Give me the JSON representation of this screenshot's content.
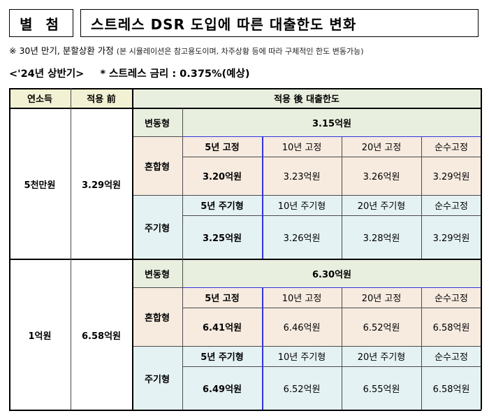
{
  "header": {
    "label": "별 첨",
    "title": "스트레스 DSR 도입에 따른 대출한도 변화"
  },
  "note": {
    "main": "※ 30년 만기, 분할상환 가정",
    "detail": "(본 시뮬레이션은 참고용도이며, 차주상황 등에 따라 구체적인 한도 변동가능)"
  },
  "subheading": {
    "period": "<'24년 상반기>",
    "rate": "* 스트레스 금리 : 0.375%(예상)"
  },
  "table": {
    "headers": {
      "income": "연소득",
      "before": "적용 前",
      "after": "적용 後 대출한도"
    },
    "groups": [
      {
        "income": "5천만원",
        "before": "3.29억원",
        "variable": {
          "label": "변동형",
          "value": "3.15억원"
        },
        "mixed": {
          "label": "혼합형",
          "cols": [
            "5년 고정",
            "10년 고정",
            "20년 고정",
            "순수고정"
          ],
          "values": [
            "3.20억원",
            "3.23억원",
            "3.26억원",
            "3.29억원"
          ]
        },
        "periodic": {
          "label": "주기형",
          "cols": [
            "5년 주기형",
            "10년 주기형",
            "20년 주기형",
            "순수고정"
          ],
          "values": [
            "3.25억원",
            "3.26억원",
            "3.28억원",
            "3.29억원"
          ]
        }
      },
      {
        "income": "1억원",
        "before": "6.58억원",
        "variable": {
          "label": "변동형",
          "value": "6.30억원"
        },
        "mixed": {
          "label": "혼합형",
          "cols": [
            "5년 고정",
            "10년 고정",
            "20년 고정",
            "순수고정"
          ],
          "values": [
            "6.41억원",
            "6.46억원",
            "6.52억원",
            "6.58억원"
          ]
        },
        "periodic": {
          "label": "주기형",
          "cols": [
            "5년 주기형",
            "10년 주기형",
            "20년 주기형",
            "순수고정"
          ],
          "values": [
            "6.49억원",
            "6.52억원",
            "6.55억원",
            "6.58억원"
          ]
        }
      }
    ]
  }
}
